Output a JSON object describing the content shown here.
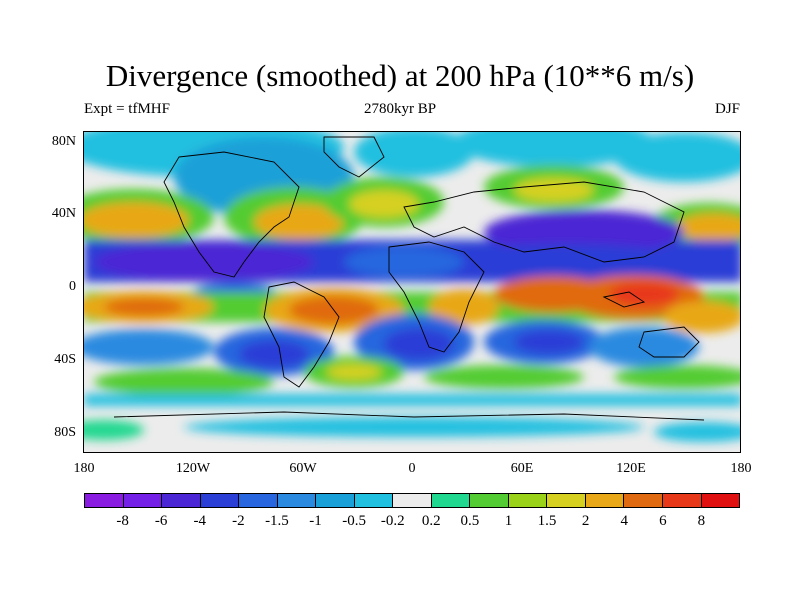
{
  "title": "Divergence (smoothed) at 200 hPa (10**6 m/s)",
  "subtitle_left": "Expt = tfMHF",
  "subtitle_center": "2780kyr BP",
  "subtitle_right": "DJF",
  "y_axis_labels": [
    "80N",
    "40N",
    "0",
    "40S",
    "80S"
  ],
  "x_axis_labels": [
    "180",
    "120W",
    "60W",
    "0",
    "60E",
    "120E",
    "180"
  ],
  "colorbar": {
    "colors": [
      "#8a1be0",
      "#7420e6",
      "#4b26d4",
      "#2b3ed6",
      "#2766de",
      "#2a8ae0",
      "#1aa0d8",
      "#20c0e0",
      "#ececec",
      "#20d890",
      "#52cc32",
      "#9ad21a",
      "#d6d020",
      "#e8a818",
      "#e06a10",
      "#e8381a",
      "#e01010"
    ],
    "labels": [
      "-8",
      "-6",
      "-4",
      "-2",
      "-1.5",
      "-1",
      "-0.5",
      "-0.2",
      "0.2",
      "0.5",
      "1",
      "1.5",
      "2",
      "4",
      "6",
      "8"
    ]
  }
}
